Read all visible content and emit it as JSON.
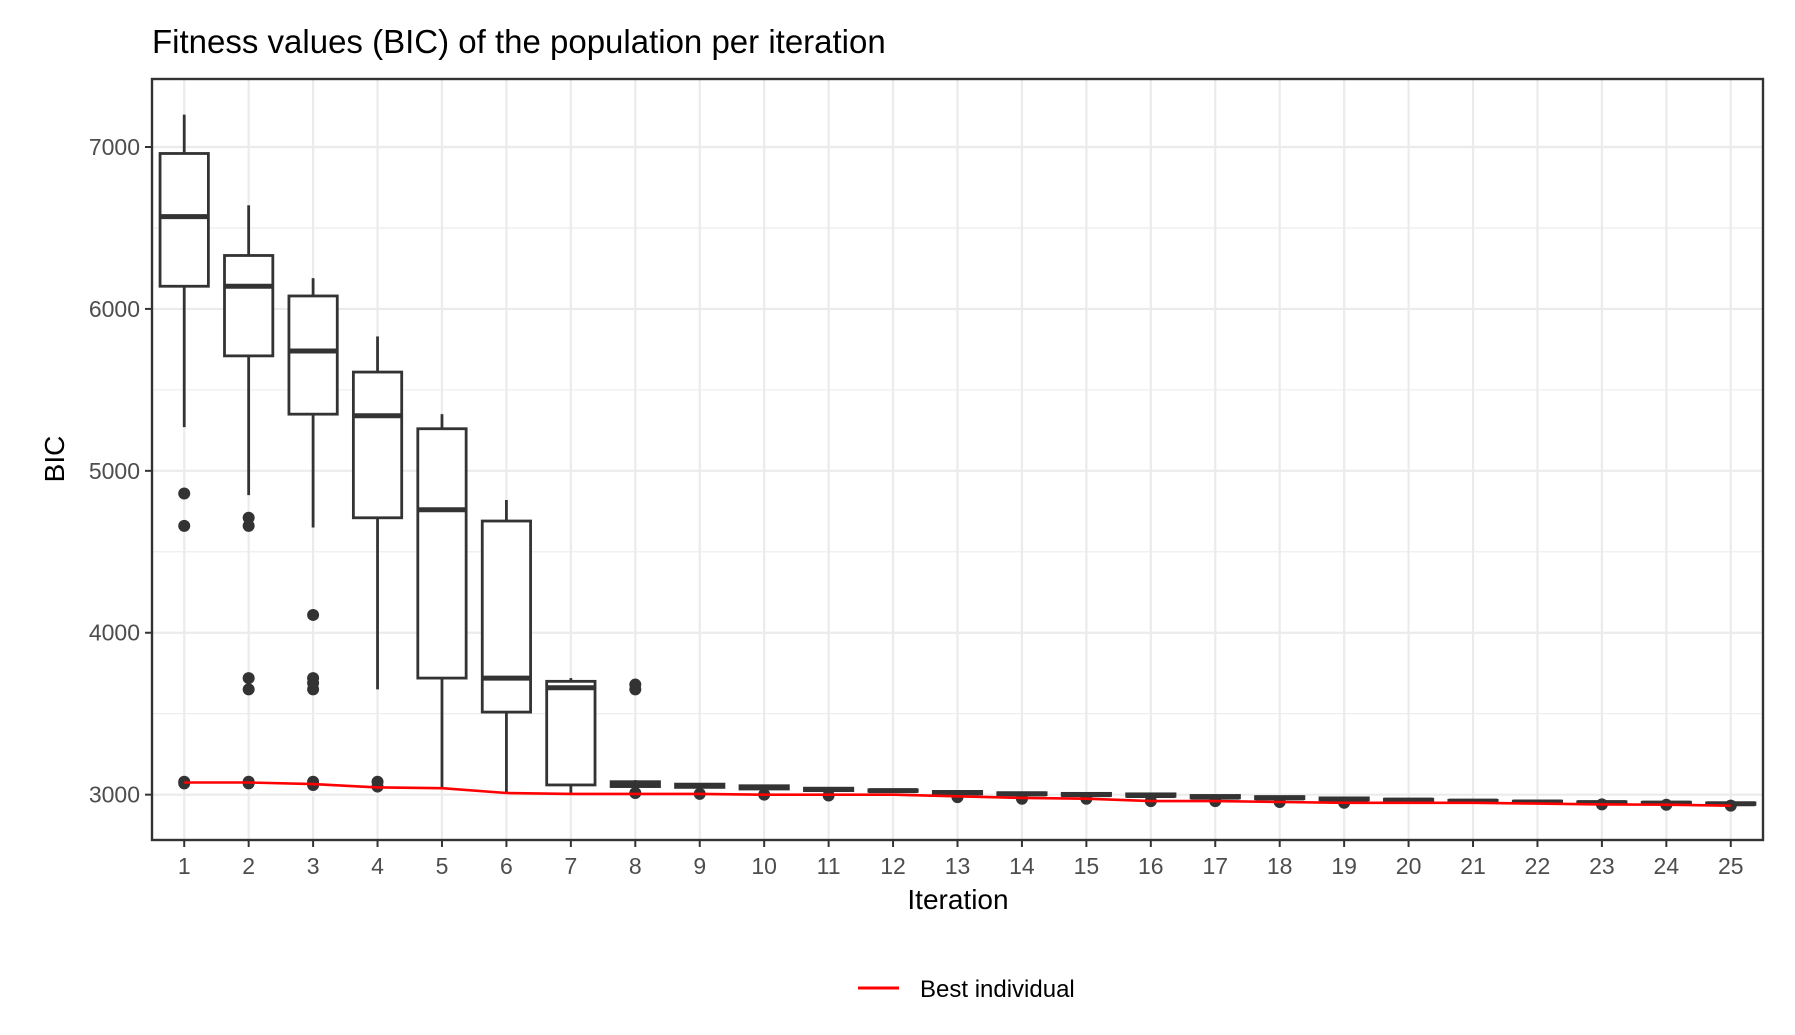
{
  "colors": {
    "box": "#333333",
    "best_line": "#ff0000",
    "grid": "#ebebeb",
    "panel_border": "#333333",
    "background": "#ffffff"
  },
  "chart_data": {
    "type": "boxplot",
    "title": "Fitness values (BIC) of the population per iteration",
    "xlabel": "Iteration",
    "ylabel": "BIC",
    "ylim": [
      2720,
      7420
    ],
    "yticks": [
      3000,
      4000,
      5000,
      6000,
      7000
    ],
    "grid": true,
    "legend_position": "bottom",
    "categories": [
      "1",
      "2",
      "3",
      "4",
      "5",
      "6",
      "7",
      "8",
      "9",
      "10",
      "11",
      "12",
      "13",
      "14",
      "15",
      "16",
      "17",
      "18",
      "19",
      "20",
      "21",
      "22",
      "23",
      "24",
      "25"
    ],
    "boxes": [
      {
        "x": "1",
        "whisker_low": 5270,
        "q1": 6140,
        "median": 6570,
        "q3": 6960,
        "whisker_high": 7200,
        "outliers": [
          4860,
          4660,
          3080,
          3070
        ]
      },
      {
        "x": "2",
        "whisker_low": 4850,
        "q1": 5710,
        "median": 6140,
        "q3": 6330,
        "whisker_high": 6640,
        "outliers": [
          4710,
          4660,
          3720,
          3650,
          3080,
          3070
        ]
      },
      {
        "x": "3",
        "whisker_low": 4650,
        "q1": 5350,
        "median": 5740,
        "q3": 6080,
        "whisker_high": 6190,
        "outliers": [
          4110,
          3720,
          3690,
          3650,
          3080,
          3060
        ]
      },
      {
        "x": "4",
        "whisker_low": 3650,
        "q1": 4710,
        "median": 5340,
        "q3": 5610,
        "whisker_high": 5830,
        "outliers": [
          3080,
          3050
        ]
      },
      {
        "x": "5",
        "whisker_low": 3040,
        "q1": 3720,
        "median": 4760,
        "q3": 5260,
        "whisker_high": 5350,
        "outliers": []
      },
      {
        "x": "6",
        "whisker_low": 3010,
        "q1": 3510,
        "median": 3720,
        "q3": 4690,
        "whisker_high": 4820,
        "outliers": []
      },
      {
        "x": "7",
        "whisker_low": 3000,
        "q1": 3060,
        "median": 3660,
        "q3": 3700,
        "whisker_high": 3720,
        "outliers": []
      },
      {
        "x": "8",
        "whisker_low": 3040,
        "q1": 3050,
        "median": 3060,
        "q3": 3080,
        "whisker_high": 3090,
        "outliers": [
          3680,
          3650,
          3010
        ]
      },
      {
        "x": "9",
        "whisker_low": 3040,
        "q1": 3045,
        "median": 3055,
        "q3": 3065,
        "whisker_high": 3070,
        "outliers": [
          3005
        ]
      },
      {
        "x": "10",
        "whisker_low": 3030,
        "q1": 3035,
        "median": 3045,
        "q3": 3055,
        "whisker_high": 3060,
        "outliers": [
          3000
        ]
      },
      {
        "x": "11",
        "whisker_low": 3020,
        "q1": 3025,
        "median": 3032,
        "q3": 3040,
        "whisker_high": 3045,
        "outliers": [
          2995
        ]
      },
      {
        "x": "12",
        "whisker_low": 3015,
        "q1": 3020,
        "median": 3025,
        "q3": 3030,
        "whisker_high": 3035,
        "outliers": []
      },
      {
        "x": "13",
        "whisker_low": 3000,
        "q1": 3005,
        "median": 3012,
        "q3": 3020,
        "whisker_high": 3025,
        "outliers": [
          2985
        ]
      },
      {
        "x": "14",
        "whisker_low": 2995,
        "q1": 3000,
        "median": 3005,
        "q3": 3012,
        "whisker_high": 3018,
        "outliers": [
          2975
        ]
      },
      {
        "x": "15",
        "whisker_low": 2990,
        "q1": 2995,
        "median": 3000,
        "q3": 3008,
        "whisker_high": 3012,
        "outliers": [
          2975
        ]
      },
      {
        "x": "16",
        "whisker_low": 2985,
        "q1": 2990,
        "median": 2995,
        "q3": 3005,
        "whisker_high": 3010,
        "outliers": [
          2960
        ]
      },
      {
        "x": "17",
        "whisker_low": 2975,
        "q1": 2980,
        "median": 2985,
        "q3": 2995,
        "whisker_high": 3000,
        "outliers": [
          2960
        ]
      },
      {
        "x": "18",
        "whisker_low": 2970,
        "q1": 2975,
        "median": 2980,
        "q3": 2988,
        "whisker_high": 2992,
        "outliers": [
          2955
        ]
      },
      {
        "x": "19",
        "whisker_low": 2965,
        "q1": 2968,
        "median": 2973,
        "q3": 2980,
        "whisker_high": 2985,
        "outliers": [
          2950
        ]
      },
      {
        "x": "20",
        "whisker_low": 2960,
        "q1": 2962,
        "median": 2966,
        "q3": 2972,
        "whisker_high": 2975,
        "outliers": []
      },
      {
        "x": "21",
        "whisker_low": 2955,
        "q1": 2957,
        "median": 2960,
        "q3": 2965,
        "whisker_high": 2968,
        "outliers": []
      },
      {
        "x": "22",
        "whisker_low": 2950,
        "q1": 2952,
        "median": 2955,
        "q3": 2960,
        "whisker_high": 2962,
        "outliers": []
      },
      {
        "x": "23",
        "whisker_low": 2945,
        "q1": 2948,
        "median": 2951,
        "q3": 2956,
        "whisker_high": 2958,
        "outliers": [
          2940
        ]
      },
      {
        "x": "24",
        "whisker_low": 2942,
        "q1": 2945,
        "median": 2948,
        "q3": 2953,
        "whisker_high": 2956,
        "outliers": [
          2938
        ]
      },
      {
        "x": "25",
        "whisker_low": 2938,
        "q1": 2941,
        "median": 2944,
        "q3": 2949,
        "whisker_high": 2952,
        "outliers": [
          2932
        ]
      }
    ],
    "series": [
      {
        "name": "Best individual",
        "type": "line",
        "values": [
          3075,
          3075,
          3065,
          3045,
          3040,
          3010,
          3005,
          3005,
          3005,
          3000,
          3000,
          3000,
          2990,
          2980,
          2975,
          2960,
          2960,
          2955,
          2950,
          2950,
          2950,
          2945,
          2940,
          2938,
          2932
        ]
      }
    ]
  }
}
